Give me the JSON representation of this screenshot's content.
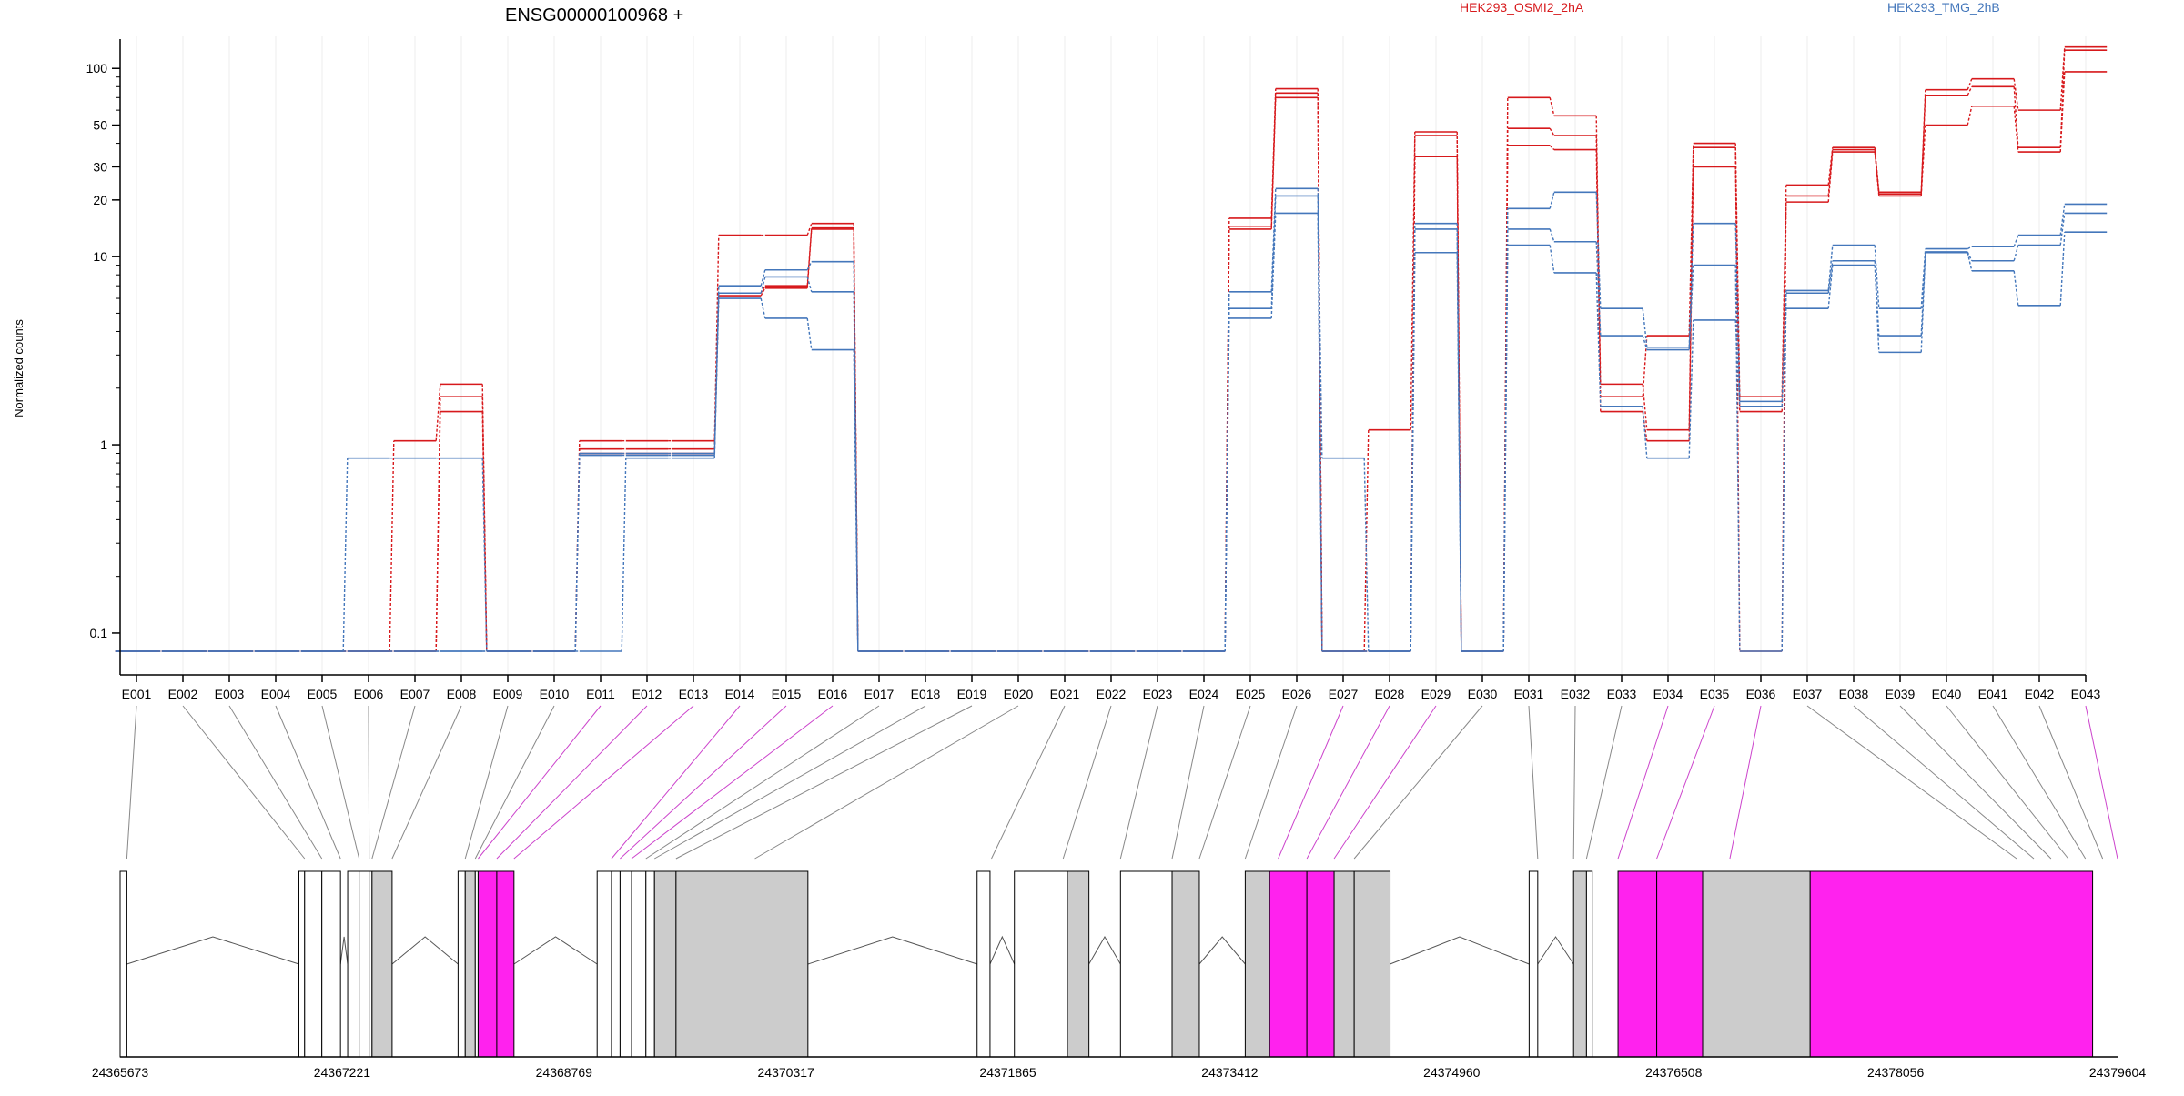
{
  "chart_data": {
    "type": "line",
    "title": "ENSG00000100968 +",
    "ylabel": "Normalized counts",
    "y_scale": "log",
    "y_ticks": [
      "100",
      "50",
      "30",
      "20",
      "10",
      "1",
      "0.1"
    ],
    "ylim": [
      0.07,
      140
    ],
    "legend": [
      {
        "name": "HEK293_OSMI2_2hA",
        "color": "#d7191c"
      },
      {
        "name": "HEK293_TMG_2hB",
        "color": "#4477bb"
      }
    ],
    "grid": "vertical",
    "categories": [
      "E001",
      "E002",
      "E003",
      "E004",
      "E005",
      "E006",
      "E007",
      "E008",
      "E009",
      "E010",
      "E011",
      "E012",
      "E013",
      "E014",
      "E015",
      "E016",
      "E017",
      "E018",
      "E019",
      "E020",
      "E021",
      "E022",
      "E023",
      "E024",
      "E025",
      "E026",
      "E027",
      "E028",
      "E029",
      "E030",
      "E031",
      "E032",
      "E033",
      "E034",
      "E035",
      "E036",
      "E037",
      "E038",
      "E039",
      "E040",
      "E041",
      "E042",
      "E043"
    ],
    "series": [
      {
        "group": "HEK293_OSMI2_2hA",
        "color": "#d7191c",
        "values": [
          0.08,
          0.08,
          0.08,
          0.08,
          0.08,
          0.08,
          1.05,
          2.1,
          0.08,
          0.08,
          1.05,
          1.05,
          1.05,
          13,
          13,
          15,
          0.08,
          0.08,
          0.08,
          0.08,
          0.08,
          0.08,
          0.08,
          0.08,
          16,
          78,
          0.08,
          1.2,
          46,
          0.08,
          70,
          56,
          2.1,
          1.2,
          40,
          1.8,
          24,
          38,
          22,
          77,
          88,
          60,
          130
        ]
      },
      {
        "group": "HEK293_OSMI2_2hA",
        "color": "#d7191c",
        "values": [
          0.08,
          0.08,
          0.08,
          0.08,
          0.08,
          0.08,
          0.08,
          1.8,
          0.08,
          0.08,
          0.95,
          0.95,
          0.95,
          6.4,
          7.0,
          14.2,
          0.08,
          0.08,
          0.08,
          0.08,
          0.08,
          0.08,
          0.08,
          0.08,
          14.5,
          74,
          0.08,
          0.08,
          44,
          0.08,
          48,
          44,
          1.8,
          3.8,
          38,
          0.08,
          21,
          37,
          21.5,
          72,
          80,
          38,
          125
        ]
      },
      {
        "group": "HEK293_OSMI2_2hA",
        "color": "#d7191c",
        "values": [
          0.08,
          0.08,
          0.08,
          0.08,
          0.08,
          0.08,
          0.08,
          1.5,
          0.08,
          0.08,
          0.9,
          0.9,
          0.9,
          6.2,
          6.8,
          14,
          0.08,
          0.08,
          0.08,
          0.08,
          0.08,
          0.08,
          0.08,
          0.08,
          14,
          70,
          0.08,
          0.08,
          34,
          0.08,
          39,
          37,
          1.5,
          1.05,
          30,
          1.5,
          19.5,
          36,
          21,
          50,
          63,
          36,
          96
        ]
      },
      {
        "group": "HEK293_TMG_2hB",
        "color": "#4477bb",
        "values": [
          0.08,
          0.08,
          0.08,
          0.08,
          0.08,
          0.85,
          0.85,
          0.85,
          0.08,
          0.08,
          0.9,
          0.9,
          0.9,
          7.0,
          8.5,
          9.4,
          0.08,
          0.08,
          0.08,
          0.08,
          0.08,
          0.08,
          0.08,
          0.08,
          6.5,
          23,
          0.85,
          0.08,
          15,
          0.08,
          18,
          22,
          5.3,
          3.3,
          15,
          1.7,
          6.6,
          11.5,
          5.3,
          11,
          11.3,
          13,
          19
        ]
      },
      {
        "group": "HEK293_TMG_2hB",
        "color": "#4477bb",
        "values": [
          0.08,
          0.08,
          0.08,
          0.08,
          0.08,
          0.08,
          0.08,
          0.08,
          0.08,
          0.08,
          0.88,
          0.88,
          0.88,
          6.4,
          7.8,
          6.5,
          0.08,
          0.08,
          0.08,
          0.08,
          0.08,
          0.08,
          0.08,
          0.08,
          5.3,
          21,
          0.08,
          0.08,
          14,
          0.08,
          14,
          12,
          3.8,
          3.2,
          9,
          0.08,
          6.4,
          9.5,
          3.8,
          10.6,
          9.5,
          11.5,
          17
        ]
      },
      {
        "group": "HEK293_TMG_2hB",
        "color": "#4477bb",
        "values": [
          0.08,
          0.08,
          0.08,
          0.08,
          0.08,
          0.08,
          0.08,
          0.08,
          0.08,
          0.08,
          0.08,
          0.85,
          0.85,
          6.0,
          4.7,
          3.2,
          0.08,
          0.08,
          0.08,
          0.08,
          0.08,
          0.08,
          0.08,
          0.08,
          4.7,
          17,
          0.08,
          0.08,
          10.5,
          0.08,
          11.5,
          8.2,
          1.6,
          0.85,
          4.6,
          1.6,
          5.3,
          9.0,
          3.1,
          10.5,
          8.4,
          5.5,
          13.5
        ]
      }
    ],
    "track_labels": [
      "24365673",
      "24367221",
      "24368769",
      "24370317",
      "24371865",
      "24373412",
      "24374960",
      "24376508",
      "24378056",
      "24379604"
    ],
    "track_range": [
      24365673,
      24379604
    ],
    "gene_model": {
      "exon_fills": [
        "white",
        "grey",
        "magenta"
      ],
      "exon_colors": {
        "white": "#ffffff",
        "grey": "#cccccc",
        "magenta": "#ff22ee"
      },
      "exons": [
        {
          "from": 24365673,
          "to": 24365720,
          "fill": "white"
        },
        {
          "from": 24366920,
          "to": 24366960,
          "fill": "white"
        },
        {
          "from": 24366960,
          "to": 24367080,
          "fill": "white"
        },
        {
          "from": 24367080,
          "to": 24367210,
          "fill": "white"
        },
        {
          "from": 24367260,
          "to": 24367340,
          "fill": "white"
        },
        {
          "from": 24367340,
          "to": 24367410,
          "fill": "white"
        },
        {
          "from": 24367410,
          "to": 24367430,
          "fill": "white"
        },
        {
          "from": 24367430,
          "to": 24367570,
          "fill": "grey"
        },
        {
          "from": 24368030,
          "to": 24368080,
          "fill": "white"
        },
        {
          "from": 24368080,
          "to": 24368150,
          "fill": "grey"
        },
        {
          "from": 24368150,
          "to": 24368170,
          "fill": "white"
        },
        {
          "from": 24368170,
          "to": 24368300,
          "fill": "magenta"
        },
        {
          "from": 24368300,
          "to": 24368420,
          "fill": "magenta"
        },
        {
          "from": 24369000,
          "to": 24369100,
          "fill": "white"
        },
        {
          "from": 24369100,
          "to": 24369160,
          "fill": "white"
        },
        {
          "from": 24369160,
          "to": 24369240,
          "fill": "white"
        },
        {
          "from": 24369240,
          "to": 24369340,
          "fill": "white"
        },
        {
          "from": 24369340,
          "to": 24369400,
          "fill": "white"
        },
        {
          "from": 24369400,
          "to": 24369550,
          "fill": "grey"
        },
        {
          "from": 24369550,
          "to": 24370470,
          "fill": "grey"
        },
        {
          "from": 24371650,
          "to": 24371740,
          "fill": "white"
        },
        {
          "from": 24371910,
          "to": 24372280,
          "fill": "white"
        },
        {
          "from": 24372280,
          "to": 24372430,
          "fill": "grey"
        },
        {
          "from": 24372650,
          "to": 24373010,
          "fill": "white"
        },
        {
          "from": 24373010,
          "to": 24373200,
          "fill": "grey"
        },
        {
          "from": 24373520,
          "to": 24373690,
          "fill": "grey"
        },
        {
          "from": 24373690,
          "to": 24373950,
          "fill": "magenta"
        },
        {
          "from": 24373950,
          "to": 24374140,
          "fill": "magenta"
        },
        {
          "from": 24374140,
          "to": 24374280,
          "fill": "grey"
        },
        {
          "from": 24374280,
          "to": 24374530,
          "fill": "grey"
        },
        {
          "from": 24375500,
          "to": 24375560,
          "fill": "white"
        },
        {
          "from": 24375810,
          "to": 24375900,
          "fill": "grey"
        },
        {
          "from": 24375900,
          "to": 24375940,
          "fill": "white"
        },
        {
          "from": 24376120,
          "to": 24376390,
          "fill": "magenta"
        },
        {
          "from": 24376390,
          "to": 24376710,
          "fill": "magenta"
        },
        {
          "from": 24376710,
          "to": 24377460,
          "fill": "grey"
        },
        {
          "from": 24377460,
          "to": 24379430,
          "fill": "magenta"
        }
      ],
      "introns": [
        [
          24365720,
          24366920
        ],
        [
          24367210,
          24367260
        ],
        [
          24367570,
          24368030
        ],
        [
          24368420,
          24369000
        ],
        [
          24370470,
          24371650
        ],
        [
          24371740,
          24371910
        ],
        [
          24372430,
          24372650
        ],
        [
          24373200,
          24373520
        ],
        [
          24374530,
          24375500
        ],
        [
          24375560,
          24375810
        ]
      ],
      "link_targets": [
        24365720,
        24366960,
        24367080,
        24367210,
        24367340,
        24367410,
        24367430,
        24367570,
        24368080,
        24368150,
        24368170,
        24368300,
        24368420,
        24369100,
        24369160,
        24369240,
        24369340,
        24369400,
        24369550,
        24370100,
        24371750,
        24372250,
        24372650,
        24373010,
        24373200,
        24373520,
        24373750,
        24373950,
        24374140,
        24374280,
        24375560,
        24375810,
        24375900,
        24376120,
        24376390,
        24376900,
        24378900
      ],
      "highlight_links": [
        10,
        11,
        12,
        13,
        14,
        15,
        26,
        27,
        28,
        33,
        34,
        35,
        42
      ]
    }
  }
}
